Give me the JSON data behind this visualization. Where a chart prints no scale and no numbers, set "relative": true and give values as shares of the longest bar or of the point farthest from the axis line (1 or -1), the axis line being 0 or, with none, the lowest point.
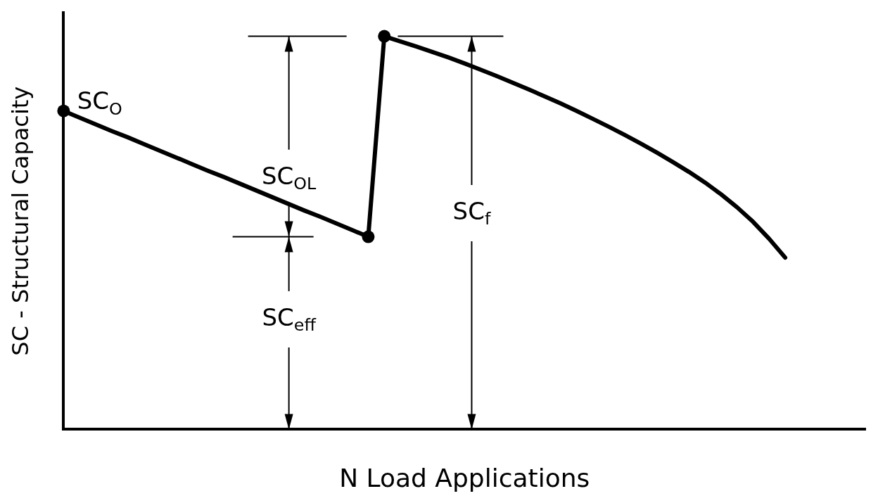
{
  "chart_data": {
    "type": "line",
    "relative": true,
    "xlabel": "N Load Applications",
    "ylabel": "SC - Structural Capacity",
    "grid": false,
    "legend": false,
    "line_style": "solid",
    "categories": [
      null,
      null,
      null,
      null,
      null,
      null,
      null,
      null,
      null,
      null,
      null,
      null,
      null,
      null,
      null,
      null,
      null,
      null,
      null,
      null,
      null,
      null,
      null,
      null,
      null,
      null,
      null,
      null,
      null,
      null,
      null,
      null,
      null,
      null,
      null,
      null,
      null,
      null,
      null,
      null,
      null,
      null,
      null,
      null,
      null,
      null,
      null,
      null,
      null,
      null,
      null
    ],
    "series": [
      {
        "color": "#000000",
        "values": [
          0.81,
          0.793,
          0.776,
          0.759,
          0.743,
          0.726,
          0.709,
          0.692,
          0.675,
          0.658,
          0.642,
          0.625,
          0.608,
          0.591,
          0.574,
          0.557,
          0.541,
          0.524,
          0.507,
          0.49,
          1.0,
          0.987,
          0.974,
          0.96,
          0.946,
          0.931,
          0.915,
          0.899,
          0.882,
          0.865,
          0.847,
          0.829,
          0.81,
          0.79,
          0.77,
          0.749,
          0.727,
          0.704,
          0.68,
          0.655,
          0.628,
          0.598,
          0.565,
          0.528,
          0.485,
          0.437,
          null,
          null,
          null,
          null,
          null
        ]
      }
    ],
    "annotations": [
      "SC$_{O}$",
      "SC$_{OL}$",
      "SC$_{f}$",
      "SC$_{eff}$"
    ]
  }
}
